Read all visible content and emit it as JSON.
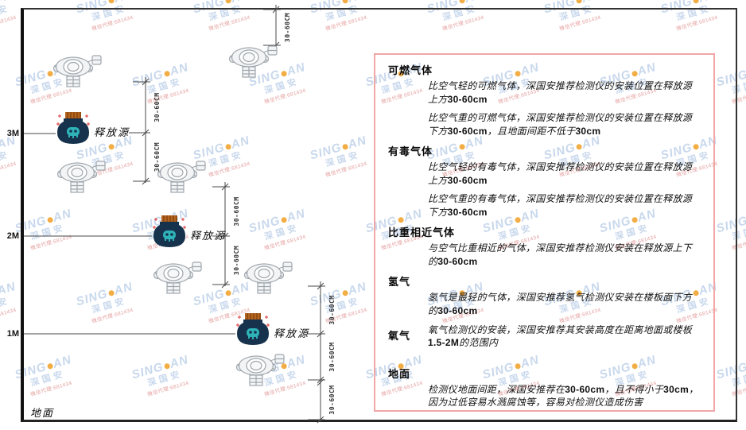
{
  "watermark": {
    "brand_prefix": "SING",
    "brand_suffix": "AN",
    "brand_cn": "深国安",
    "agent_note": "微信代理:681434",
    "brand_color": "#c6d6ec",
    "dot_color": "#f2a93c",
    "note_color": "#e49b9b"
  },
  "diagram": {
    "heights": [
      "3M",
      "2M",
      "1M"
    ],
    "ground_label": "地面",
    "source_label": "释放源",
    "dim_label": "30-60CM",
    "detector_icon": "gas-detector-icon",
    "source_icon": "release-source-icon",
    "line_color": "#4a4a4a",
    "source_body_color": "#16324d",
    "source_cap_color": "#b5651d",
    "source_emblem_color": "#2fb3b8",
    "sparkle_color": "#e25555"
  },
  "panel": {
    "border_color": "#f2a6a6",
    "sections": [
      {
        "heading": "可燃气体",
        "inline": false,
        "paragraphs": [
          "比空气轻的可燃气体，深国安推荐检测仪的安装位置在释放源上方30-60cm",
          "比空气重的可燃气体，深国安推荐检测仪的安装位置在释放源下方30-60cm，且地面间距不低于30cm"
        ]
      },
      {
        "heading": "有毒气体",
        "inline": false,
        "paragraphs": [
          "比空气轻的有毒气体，深国安推荐检测仪的安装位置在释放源上方30-60cm",
          "比空气重的有毒气体，深国安推荐检测仪的安装位置在释放源下方30-60cm"
        ]
      },
      {
        "heading": "比重相近气体",
        "inline": false,
        "paragraphs": [
          "与空气比重相近的气体，深国安推荐检测仪安装在释放源上下的30-60cm"
        ]
      },
      {
        "heading": "氢气",
        "inline": false,
        "paragraphs": [
          "氢气是最轻的气体，深国安推荐氢气检测仪安装在楼板面下方的30-60cm"
        ]
      },
      {
        "heading": "氧气",
        "inline": true,
        "paragraphs": [
          "氧气检测仪的安装，深国安推荐其安装高度在距离地面或楼板1.5-2M的范围内"
        ]
      },
      {
        "heading": "地面",
        "inline": false,
        "paragraphs": [
          "检测仪地面间距，深国安推荐在30-60cm，且不得小于30cm，因为过低容易水溅腐蚀等，容易对检测仪造成伤害"
        ]
      }
    ]
  }
}
